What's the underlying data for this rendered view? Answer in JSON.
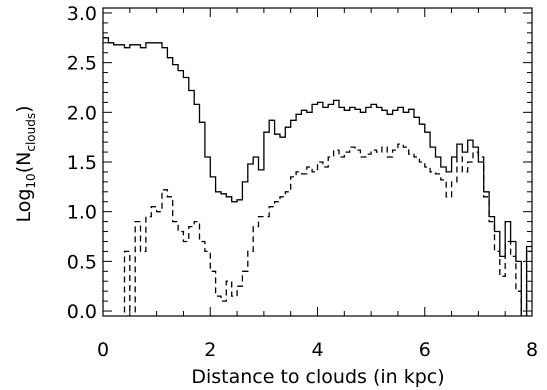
{
  "chart_data": {
    "type": "line",
    "xlabel": "Distance to clouds (in kpc)",
    "ylabel": "Log10(Nclouds)",
    "ylabel_parts": {
      "base": "Log",
      "base_sub": "10",
      "open": "(N",
      "n_sub": "clouds",
      "close": ")"
    },
    "xlim": [
      0,
      8
    ],
    "ylim": [
      -0.05,
      3.05
    ],
    "x_ticks": [
      0,
      2,
      4,
      6,
      8
    ],
    "x_tick_labels": [
      "0",
      "2",
      "4",
      "6",
      "8"
    ],
    "y_ticks": [
      0,
      0.5,
      1,
      1.5,
      2,
      2.5,
      3
    ],
    "y_tick_labels": [
      "0.0",
      "0.5",
      "1.0",
      "1.5",
      "2.0",
      "2.5",
      "3.0"
    ],
    "bin_width": 0.1,
    "grid": false,
    "legend": "none",
    "series": [
      {
        "style": "solid",
        "color": "#000000",
        "values": [
          2.75,
          2.7,
          2.68,
          2.68,
          2.65,
          2.68,
          2.68,
          2.65,
          2.7,
          2.7,
          2.7,
          2.65,
          2.55,
          2.48,
          2.42,
          2.35,
          2.22,
          2.08,
          1.9,
          1.55,
          1.35,
          1.2,
          1.18,
          1.15,
          1.1,
          1.12,
          1.3,
          1.48,
          1.55,
          1.42,
          1.8,
          1.92,
          1.78,
          1.75,
          1.85,
          1.92,
          1.98,
          2.02,
          2.0,
          2.08,
          2.1,
          2.05,
          2.08,
          2.12,
          2.05,
          2.02,
          2.05,
          2.03,
          2.0,
          2.05,
          2.08,
          2.05,
          2.02,
          1.98,
          2.02,
          2.05,
          2.0,
          2.03,
          1.95,
          1.88,
          1.8,
          1.65,
          1.55,
          1.45,
          1.4,
          1.55,
          1.68,
          1.6,
          1.72,
          1.65,
          1.5,
          1.2,
          0.95,
          0.8,
          0.55,
          0.9,
          0.7,
          0.5,
          -0.1,
          0.65
        ]
      },
      {
        "style": "dashed",
        "color": "#000000",
        "values": [
          -0.1,
          -0.1,
          -0.1,
          -0.1,
          0.6,
          -0.1,
          0.9,
          0.6,
          0.95,
          1.05,
          1.0,
          1.22,
          1.15,
          0.9,
          0.8,
          0.7,
          0.85,
          0.9,
          0.7,
          0.6,
          0.4,
          0.15,
          0.1,
          0.3,
          0.15,
          0.25,
          0.4,
          0.6,
          0.85,
          0.95,
          0.95,
          1.05,
          1.1,
          1.15,
          1.2,
          1.35,
          1.4,
          1.38,
          1.45,
          1.4,
          1.5,
          1.45,
          1.55,
          1.62,
          1.55,
          1.6,
          1.65,
          1.62,
          1.55,
          1.58,
          1.62,
          1.6,
          1.65,
          1.55,
          1.62,
          1.68,
          1.65,
          1.58,
          1.55,
          1.5,
          1.45,
          1.4,
          1.38,
          1.32,
          1.15,
          1.3,
          1.55,
          1.4,
          1.5,
          1.6,
          1.55,
          1.15,
          0.9,
          0.6,
          0.35,
          0.7,
          0.55,
          0.2,
          -0.1,
          0.6
        ]
      }
    ]
  }
}
